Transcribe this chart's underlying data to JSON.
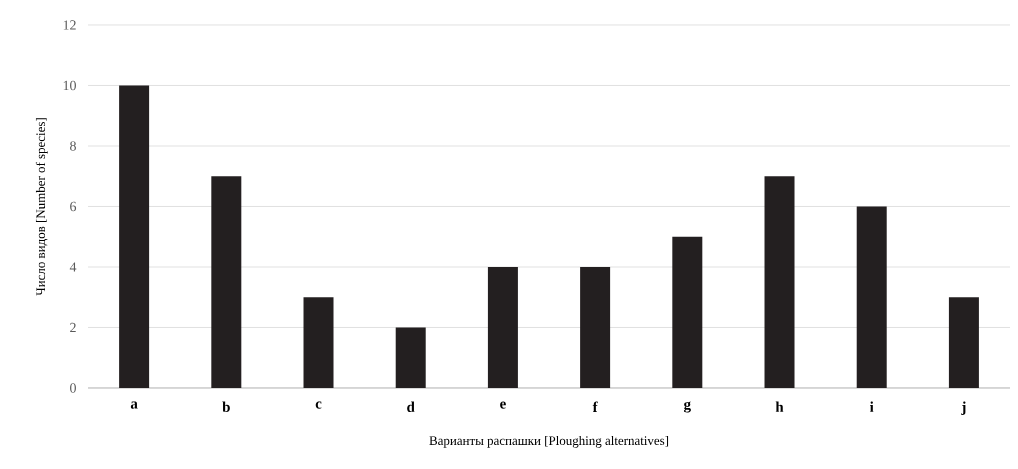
{
  "chart_data": {
    "type": "bar",
    "xlabel": "Варианты распашки [Ploughing alternatives]",
    "ylabel": "Число видов [Number of species]",
    "categories": [
      "a",
      "b",
      "c",
      "d",
      "e",
      "f",
      "g",
      "h",
      "i",
      "j"
    ],
    "values": [
      10,
      7,
      3,
      2,
      4,
      4,
      5,
      7,
      6,
      3
    ],
    "color": "#231f20",
    "ylim": [
      0,
      12
    ],
    "yticks": [
      0,
      2,
      4,
      6,
      8,
      10,
      12
    ],
    "grid": "y"
  }
}
